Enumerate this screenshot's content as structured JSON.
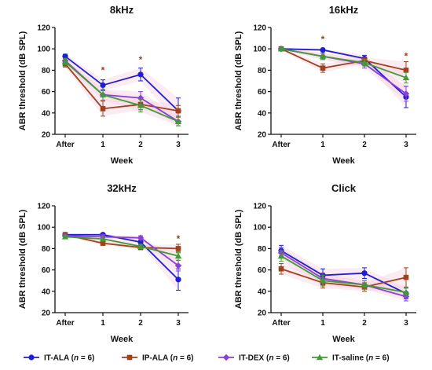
{
  "chart_data": [
    {
      "type": "line",
      "title": "8kHz",
      "xlabel": "Week",
      "ylabel": "ABR threshold (dB SPL)",
      "categories": [
        "After",
        "1",
        "2",
        "3"
      ],
      "ylim": [
        20,
        120
      ],
      "yticks": [
        "20",
        "40",
        "60",
        "80",
        "100",
        "120"
      ],
      "series": [
        {
          "name": "IT-ALA",
          "values": [
            93,
            66,
            76,
            42
          ],
          "err": [
            2,
            5,
            6,
            12
          ]
        },
        {
          "name": "IP-ALA",
          "values": [
            86,
            44,
            48,
            42
          ],
          "err": [
            3,
            7,
            5,
            5
          ]
        },
        {
          "name": "IT-DEX",
          "values": [
            89,
            57,
            54,
            32
          ],
          "err": [
            2,
            5,
            6,
            4
          ]
        },
        {
          "name": "IT-saline",
          "values": [
            88,
            57,
            47,
            32
          ],
          "err": [
            3,
            5,
            6,
            4
          ]
        }
      ],
      "markers": [
        {
          "x": "1",
          "y": 80,
          "label": "*"
        },
        {
          "x": "2",
          "y": 90,
          "label": "*"
        }
      ]
    },
    {
      "type": "line",
      "title": "16kHz",
      "xlabel": "Week",
      "ylabel": "ABR threshold (dB SPL)",
      "categories": [
        "After",
        "1",
        "2",
        "3"
      ],
      "ylim": [
        20,
        120
      ],
      "yticks": [
        "20",
        "40",
        "60",
        "80",
        "100",
        "120"
      ],
      "series": [
        {
          "name": "IT-ALA",
          "values": [
            100,
            99,
            91,
            55
          ],
          "err": [
            1,
            1,
            3,
            10
          ]
        },
        {
          "name": "IP-ALA",
          "values": [
            100,
            82,
            89,
            80
          ],
          "err": [
            1,
            4,
            3,
            8
          ]
        },
        {
          "name": "IT-DEX",
          "values": [
            100,
            93,
            86,
            58
          ],
          "err": [
            1,
            3,
            4,
            7
          ]
        },
        {
          "name": "IT-saline",
          "values": [
            100,
            93,
            87,
            73
          ],
          "err": [
            1,
            3,
            3,
            5
          ]
        }
      ],
      "markers": [
        {
          "x": "1",
          "y": 109,
          "label": "*"
        },
        {
          "x": "3",
          "y": 93,
          "label": "*"
        }
      ]
    },
    {
      "type": "line",
      "title": "32kHz",
      "xlabel": "Week",
      "ylabel": "ABR threshold (dB SPL)",
      "categories": [
        "After",
        "1",
        "2",
        "3"
      ],
      "ylim": [
        20,
        120
      ],
      "yticks": [
        "20",
        "40",
        "60",
        "80",
        "100",
        "120"
      ],
      "series": [
        {
          "name": "IT-ALA",
          "values": [
            93,
            93,
            86,
            51
          ],
          "err": [
            1,
            1,
            2,
            10
          ]
        },
        {
          "name": "IP-ALA",
          "values": [
            93,
            85,
            81,
            80
          ],
          "err": [
            1,
            2,
            2,
            4
          ]
        },
        {
          "name": "IT-DEX",
          "values": [
            92,
            91,
            90,
            64
          ],
          "err": [
            1,
            2,
            2,
            5
          ]
        },
        {
          "name": "IT-saline",
          "values": [
            91,
            89,
            82,
            73
          ],
          "err": [
            1,
            2,
            2,
            4
          ]
        }
      ],
      "markers": [
        {
          "x": "3",
          "y": 89,
          "label": "*"
        }
      ]
    },
    {
      "type": "line",
      "title": "Click",
      "xlabel": "Week",
      "ylabel": "ABR threshold (dB SPL)",
      "categories": [
        "After",
        "1",
        "2",
        "3"
      ],
      "ylim": [
        20,
        120
      ],
      "yticks": [
        "20",
        "40",
        "60",
        "80",
        "100",
        "120"
      ],
      "series": [
        {
          "name": "IT-ALA",
          "values": [
            78,
            55,
            57,
            38
          ],
          "err": [
            5,
            6,
            5,
            5
          ]
        },
        {
          "name": "IP-ALA",
          "values": [
            61,
            48,
            44,
            53
          ],
          "err": [
            5,
            5,
            4,
            9
          ]
        },
        {
          "name": "IT-DEX",
          "values": [
            76,
            52,
            46,
            35
          ],
          "err": [
            5,
            5,
            4,
            4
          ]
        },
        {
          "name": "IT-saline",
          "values": [
            73,
            50,
            46,
            39
          ],
          "err": [
            5,
            5,
            4,
            4
          ]
        }
      ],
      "markers": []
    }
  ],
  "legend": {
    "position": "bottom",
    "entries": [
      {
        "prefix": "IT-ALA (",
        "n_label": "n",
        "suffix": " = 6)"
      },
      {
        "prefix": "IP-ALA (",
        "n_label": "n",
        "suffix": " = 6)"
      },
      {
        "prefix": "IT-DEX (",
        "n_label": "n",
        "suffix": " = 6)"
      },
      {
        "prefix": "IT-saline (",
        "n_label": "n",
        "suffix": " = 6)"
      }
    ]
  },
  "styles": {
    "series_colors": [
      "#1f1fd1",
      "#a0411a",
      "#8a3fd6",
      "#3f9c35"
    ],
    "marker_shapes": [
      "circle",
      "square",
      "diamond",
      "triangle"
    ],
    "star_color": "#a0411a",
    "band_color": "#f6d3e3"
  }
}
